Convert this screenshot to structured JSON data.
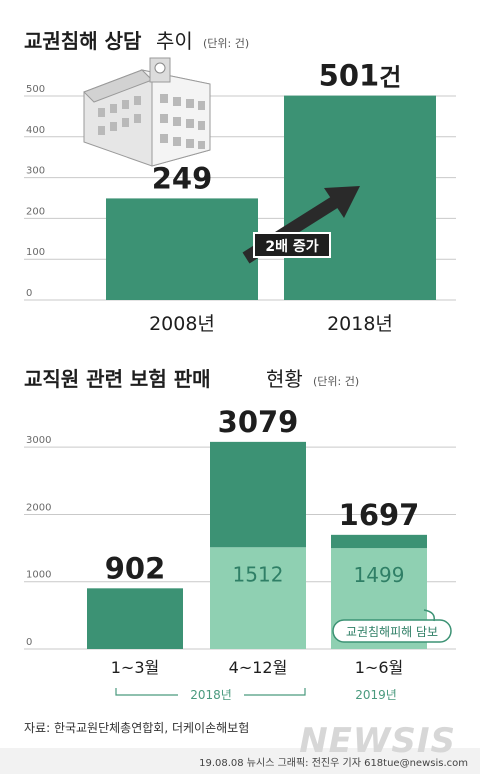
{
  "chart_data": [
    {
      "type": "bar",
      "title": "교권침해 상담",
      "title_sub": "추이",
      "unit": "(단위: 건)",
      "categories": [
        "2008년",
        "2018년"
      ],
      "values": [
        249,
        501
      ],
      "value_labels": [
        "249",
        "501"
      ],
      "value_unit_suffix": "건",
      "yticks": [
        0,
        100,
        200,
        300,
        400,
        500
      ],
      "ylim": [
        0,
        500
      ],
      "grid": true,
      "annotation": "2배 증가",
      "colors": {
        "bar": "#3c9274"
      }
    },
    {
      "type": "bar",
      "title": "교직원 관련 보험 판매",
      "title_sub": "현황",
      "unit": "(단위: 건)",
      "categories": [
        "1~3월",
        "4~12월",
        "1~6월"
      ],
      "totals": [
        902,
        3079,
        1697
      ],
      "total_labels": [
        "902",
        "3079",
        "1697"
      ],
      "series": [
        {
          "values": [
            902,
            1567,
            198
          ]
        },
        {
          "values": [
            0,
            1512,
            1499
          ],
          "labels": [
            "",
            "1512",
            "1499"
          ]
        }
      ],
      "groups": [
        {
          "label": "2018년",
          "categories": [
            "1~3월",
            "4~12월"
          ]
        },
        {
          "label": "2019년",
          "categories": [
            "1~6월"
          ]
        }
      ],
      "note": "교권침해피해 담보",
      "yticks": [
        0,
        1000,
        2000,
        3000
      ],
      "ylim": [
        0,
        3300
      ],
      "grid": true,
      "colors": {
        "dark": "#3c9274",
        "light": "#8fd0b2"
      }
    }
  ],
  "footer": {
    "source": "자료: 한국교원단체총연합회, 더케이손해보험",
    "credit": "19.08.08 뉴시스 그래픽: 전진우 기자 618tue@newsis.com",
    "logo": "NEWSIS"
  },
  "colors": {
    "accent": "#3c9274",
    "accent_light": "#8fd0b2",
    "bg_band": "#f2f2f2"
  }
}
